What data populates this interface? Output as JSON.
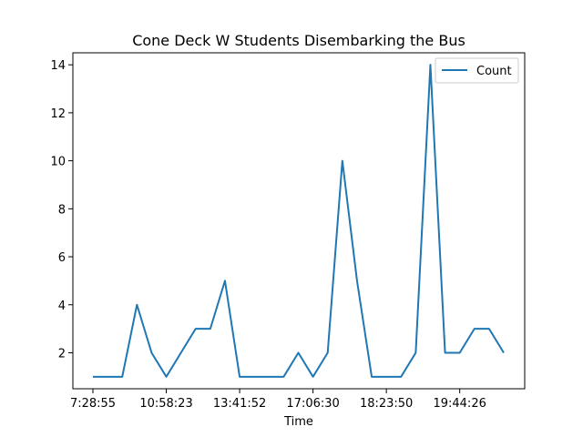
{
  "chart_data": {
    "type": "line",
    "title": "Cone Deck W Students Disembarking the Bus",
    "xlabel": "Time",
    "ylabel": "",
    "x_tick_labels": [
      "7:28:55",
      "10:58:23",
      "13:41:52",
      "17:06:30",
      "18:23:50",
      "19:44:26"
    ],
    "x_tick_indices": [
      0,
      5,
      10,
      15,
      20,
      25
    ],
    "y_ticks": [
      2,
      4,
      6,
      8,
      10,
      12,
      14
    ],
    "ylim": [
      0.5,
      14.5
    ],
    "grid": false,
    "legend_position": "top-right",
    "series": [
      {
        "name": "Count",
        "color": "#1f77b4",
        "values": [
          1,
          1,
          1,
          4,
          2,
          1,
          2,
          3,
          3,
          5,
          1,
          1,
          1,
          1,
          2,
          1,
          2,
          10,
          5,
          1,
          1,
          1,
          2,
          14,
          2,
          2,
          3,
          3,
          2
        ]
      }
    ]
  }
}
